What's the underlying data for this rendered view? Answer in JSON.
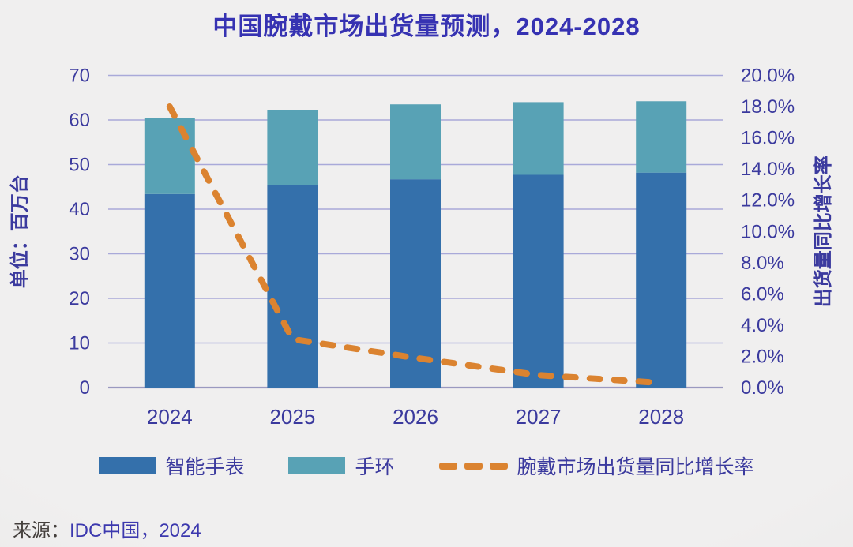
{
  "page": {
    "source_prefix": "来源：",
    "source_value": "IDC中国，2024"
  },
  "chart_data": {
    "type": "bar",
    "stacked": true,
    "title": "中国腕戴市场出货量预测，2024-2028",
    "categories": [
      "2024",
      "2025",
      "2026",
      "2027",
      "2028"
    ],
    "series": [
      {
        "name": "智能手表",
        "type": "bar",
        "stack": "shipments",
        "color": "#3470AB",
        "axis": "left",
        "values": [
          43.4,
          45.4,
          46.7,
          47.7,
          48.2
        ]
      },
      {
        "name": "手环",
        "type": "bar",
        "stack": "shipments",
        "color": "#58A2B5",
        "axis": "left",
        "values": [
          17.1,
          16.9,
          16.8,
          16.3,
          16.0
        ]
      },
      {
        "name": "腕戴市场出货量同比增长率",
        "type": "line",
        "style": "dashed",
        "axis": "right",
        "color": "#DB8330",
        "unit": "%",
        "values": [
          18.0,
          3.1,
          1.9,
          0.8,
          0.3
        ]
      }
    ],
    "stack_totals": [
      60.5,
      62.3,
      63.5,
      64.0,
      64.2
    ],
    "left_axis": {
      "label": "单位：百万台",
      "min": 0,
      "max": 70,
      "step": 10,
      "ticks": [
        "70",
        "60",
        "50",
        "40",
        "30",
        "20",
        "10",
        "0"
      ]
    },
    "right_axis": {
      "label": "出货量同比增长率",
      "min": 0,
      "max": 20,
      "step": 2,
      "ticks": [
        "20.0%",
        "18.0%",
        "16.0%",
        "14.0%",
        "12.0%",
        "10.0%",
        "8.0%",
        "6.0%",
        "4.0%",
        "2.0%",
        "0.0%"
      ]
    },
    "grid": "horizontal",
    "legend_position": "bottom",
    "colors": {
      "text": "#3B3A9E",
      "title": "#3632B2",
      "grid": "#A9A9D9",
      "baseline": "#9A99C0",
      "background": "#ECECEC"
    }
  }
}
